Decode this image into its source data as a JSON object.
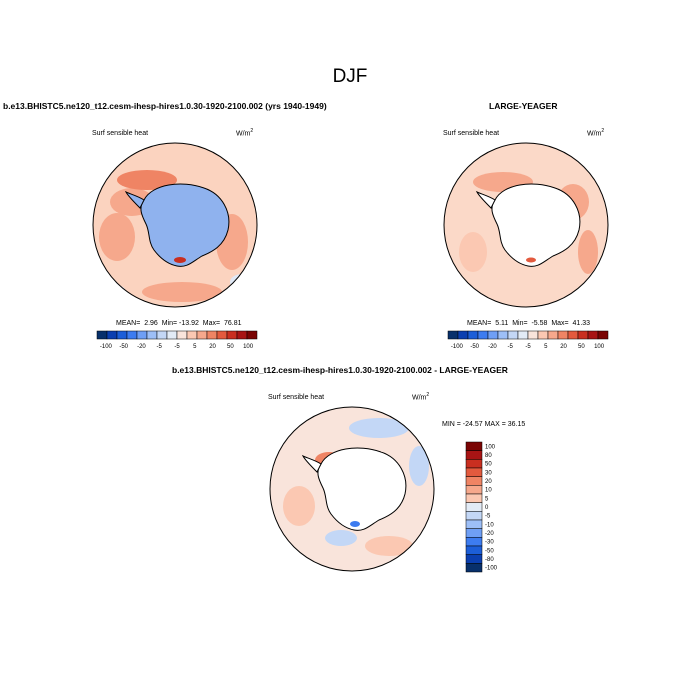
{
  "page": {
    "title": "DJF"
  },
  "colors": {
    "scale": [
      "#08306b",
      "#0b3fb0",
      "#1c5ed8",
      "#3d7cf0",
      "#6f9ff5",
      "#9dbff7",
      "#c3d7f6",
      "#e2ebf6",
      "#f9e4db",
      "#fbc8b2",
      "#f6a88c",
      "#ef8464",
      "#e35a3e",
      "#c92f20",
      "#a81414",
      "#7a0403"
    ],
    "ocean_base": "#fbd9c8",
    "land": "#ffffff",
    "antarctic_interior": "#8fb2ee"
  },
  "chart_data": [
    {
      "type": "heatmap",
      "title": "b.e13.BHISTC5.ne120_t12.cesm-ihesp-hires1.0.30-1920-2100.002 (yrs 1940-1949)",
      "variable": "Surf sensible heat",
      "units": "W/m",
      "units_exp": "2",
      "stats": {
        "mean_label": "MEAN=",
        "mean": "2.96",
        "min_label": "Min=",
        "min": "-13.92",
        "max_label": "Max=",
        "max": "76.81"
      },
      "colorbar_ticks": [
        "-100",
        "-50",
        "-20",
        "-5",
        "-5",
        "5",
        "20",
        "50",
        "100"
      ],
      "colorbar_orientation": "horizontal"
    },
    {
      "type": "heatmap",
      "title": "LARGE-YEAGER",
      "variable": "Surf sensible heat",
      "units": "W/m",
      "units_exp": "2",
      "stats": {
        "mean_label": "MEAN=",
        "mean": "5.11",
        "min_label": "Min=",
        "min": "-5.58",
        "max_label": "Max=",
        "max": "41.33"
      },
      "colorbar_ticks": [
        "-100",
        "-50",
        "-20",
        "-5",
        "-5",
        "5",
        "20",
        "50",
        "100"
      ],
      "colorbar_orientation": "horizontal"
    },
    {
      "type": "heatmap",
      "title": "b.e13.BHISTC5.ne120_t12.cesm-ihesp-hires1.0.30-1920-2100.002 - LARGE-YEAGER",
      "variable": "Surf sensible heat",
      "units": "W/m",
      "units_exp": "2",
      "minmax_label": "MIN = -24.57 MAX = 36.15",
      "colorbar_ticks": [
        "100",
        "80",
        "50",
        "30",
        "20",
        "10",
        "5",
        "0",
        "-5",
        "-10",
        "-20",
        "-30",
        "-50",
        "-80",
        "-100"
      ],
      "colorbar_orientation": "vertical"
    }
  ]
}
